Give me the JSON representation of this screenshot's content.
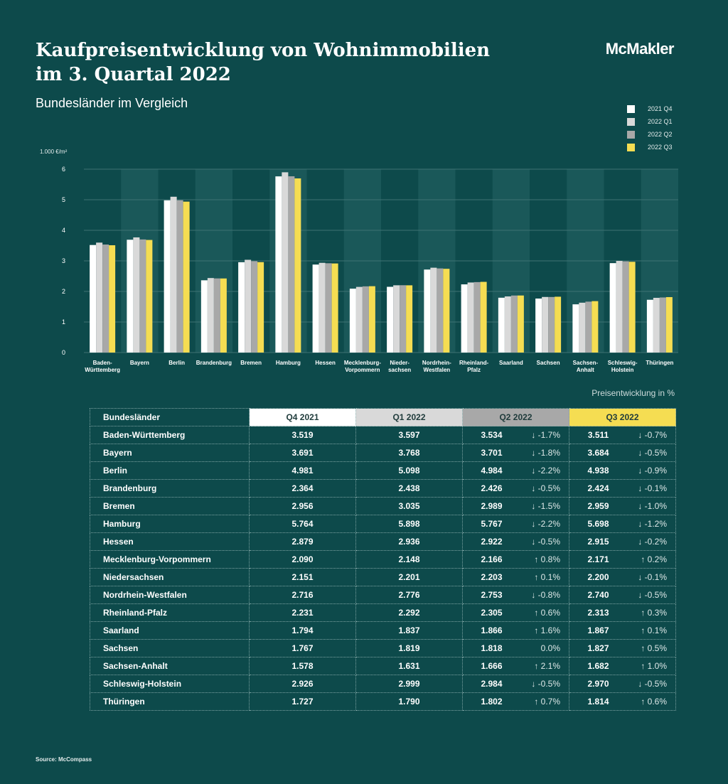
{
  "header": {
    "title_line1": "Kaufpreisentwicklung von Wohnimmobilien",
    "title_line2": "im 3. Quartal 2022",
    "subtitle": "Bundesländer im Vergleich",
    "brand": "McMakler"
  },
  "colors": {
    "background": "#0d4a4b",
    "q4_2021": "#ffffff",
    "q1_2022": "#d9d9d9",
    "q2_2022": "#a8a8a8",
    "q3_2022": "#f5dd52"
  },
  "chart_data": {
    "type": "bar",
    "ylabel": "1.000 €/m²",
    "ylim": [
      0,
      6
    ],
    "yticks": [
      0,
      1,
      2,
      3,
      4,
      5,
      6
    ],
    "grid": true,
    "legend_position": "top-right",
    "categories": [
      "Baden-Württemberg",
      "Bayern",
      "Berlin",
      "Brandenburg",
      "Bremen",
      "Hamburg",
      "Hessen",
      "Mecklenburg-Vorpommern",
      "Niedersachsen",
      "Nordrhein-Westfalen",
      "Rheinland-Pfalz",
      "Saarland",
      "Sachsen",
      "Sachsen-Anhalt",
      "Schleswig-Holstein",
      "Thüringen"
    ],
    "category_labels": [
      [
        "Baden-",
        "Württemberg"
      ],
      [
        "Bayern"
      ],
      [
        "Berlin"
      ],
      [
        "Brandenburg"
      ],
      [
        "Bremen"
      ],
      [
        "Hamburg"
      ],
      [
        "Hessen"
      ],
      [
        "Mecklenburg-",
        "Vorpommern"
      ],
      [
        "Nieder-",
        "sachsen"
      ],
      [
        "Nordrhein-",
        "Westfalen"
      ],
      [
        "Rheinland-",
        "Pfalz"
      ],
      [
        "Saarland"
      ],
      [
        "Sachsen"
      ],
      [
        "Sachsen-",
        "Anhalt"
      ],
      [
        "Schleswig-",
        "Holstein"
      ],
      [
        "Thüringen"
      ]
    ],
    "series": [
      {
        "name": "2021 Q4",
        "color": "#ffffff",
        "values": [
          3.519,
          3.691,
          4.981,
          2.364,
          2.956,
          5.764,
          2.879,
          2.09,
          2.151,
          2.716,
          2.231,
          1.794,
          1.767,
          1.578,
          2.926,
          1.727
        ]
      },
      {
        "name": "2022 Q1",
        "color": "#d9d9d9",
        "values": [
          3.597,
          3.768,
          5.098,
          2.438,
          3.035,
          5.898,
          2.936,
          2.148,
          2.201,
          2.776,
          2.292,
          1.837,
          1.819,
          1.631,
          2.999,
          1.79
        ]
      },
      {
        "name": "2022 Q2",
        "color": "#a8a8a8",
        "values": [
          3.534,
          3.701,
          4.984,
          2.426,
          2.989,
          5.767,
          2.922,
          2.166,
          2.203,
          2.753,
          2.305,
          1.866,
          1.818,
          1.666,
          2.984,
          1.802
        ]
      },
      {
        "name": "2022 Q3",
        "color": "#f5dd52",
        "values": [
          3.511,
          3.684,
          4.938,
          2.424,
          2.959,
          5.698,
          2.915,
          2.171,
          2.2,
          2.74,
          2.313,
          1.867,
          1.827,
          1.682,
          2.97,
          1.814
        ]
      }
    ]
  },
  "table": {
    "caption": "Preisentwicklung in %",
    "headers": [
      "Bundesländer",
      "Q4 2021",
      "Q1 2022",
      "Q2 2022",
      "Q3 2022"
    ],
    "rows": [
      {
        "name": "Baden-Württemberg",
        "q4": "3.519",
        "q1": "3.597",
        "q2": "3.534",
        "q2_change": "↓ -1.7%",
        "q3": "3.511",
        "q3_change": "↓ -0.7%"
      },
      {
        "name": "Bayern",
        "q4": "3.691",
        "q1": "3.768",
        "q2": "3.701",
        "q2_change": "↓ -1.8%",
        "q3": "3.684",
        "q3_change": "↓ -0.5%"
      },
      {
        "name": "Berlin",
        "q4": "4.981",
        "q1": "5.098",
        "q2": "4.984",
        "q2_change": "↓ -2.2%",
        "q3": "4.938",
        "q3_change": "↓ -0.9%"
      },
      {
        "name": "Brandenburg",
        "q4": "2.364",
        "q1": "2.438",
        "q2": "2.426",
        "q2_change": "↓ -0.5%",
        "q3": "2.424",
        "q3_change": "↓ -0.1%"
      },
      {
        "name": "Bremen",
        "q4": "2.956",
        "q1": "3.035",
        "q2": "2.989",
        "q2_change": "↓ -1.5%",
        "q3": "2.959",
        "q3_change": "↓ -1.0%"
      },
      {
        "name": "Hamburg",
        "q4": "5.764",
        "q1": "5.898",
        "q2": "5.767",
        "q2_change": "↓ -2.2%",
        "q3": "5.698",
        "q3_change": "↓ -1.2%"
      },
      {
        "name": "Hessen",
        "q4": "2.879",
        "q1": "2.936",
        "q2": "2.922",
        "q2_change": "↓ -0.5%",
        "q3": "2.915",
        "q3_change": "↓ -0.2%"
      },
      {
        "name": "Mecklenburg-Vorpommern",
        "q4": "2.090",
        "q1": "2.148",
        "q2": "2.166",
        "q2_change": "↑ 0.8%",
        "q3": "2.171",
        "q3_change": "↑ 0.2%"
      },
      {
        "name": "Niedersachsen",
        "q4": "2.151",
        "q1": "2.201",
        "q2": "2.203",
        "q2_change": "↑ 0.1%",
        "q3": "2.200",
        "q3_change": "↓ -0.1%"
      },
      {
        "name": "Nordrhein-Westfalen",
        "q4": "2.716",
        "q1": "2.776",
        "q2": "2.753",
        "q2_change": "↓ -0.8%",
        "q3": "2.740",
        "q3_change": "↓ -0.5%"
      },
      {
        "name": "Rheinland-Pfalz",
        "q4": "2.231",
        "q1": "2.292",
        "q2": "2.305",
        "q2_change": "↑ 0.6%",
        "q3": "2.313",
        "q3_change": "↑ 0.3%"
      },
      {
        "name": "Saarland",
        "q4": "1.794",
        "q1": "1.837",
        "q2": "1.866",
        "q2_change": "↑ 1.6%",
        "q3": "1.867",
        "q3_change": "↑ 0.1%"
      },
      {
        "name": "Sachsen",
        "q4": "1.767",
        "q1": "1.819",
        "q2": "1.818",
        "q2_change": "0.0%",
        "q3": "1.827",
        "q3_change": "↑ 0.5%"
      },
      {
        "name": "Sachsen-Anhalt",
        "q4": "1.578",
        "q1": "1.631",
        "q2": "1.666",
        "q2_change": "↑ 2.1%",
        "q3": "1.682",
        "q3_change": "↑ 1.0%"
      },
      {
        "name": "Schleswig-Holstein",
        "q4": "2.926",
        "q1": "2.999",
        "q2": "2.984",
        "q2_change": "↓ -0.5%",
        "q3": "2.970",
        "q3_change": "↓ -0.5%"
      },
      {
        "name": "Thüringen",
        "q4": "1.727",
        "q1": "1.790",
        "q2": "1.802",
        "q2_change": "↑ 0.7%",
        "q3": "1.814",
        "q3_change": "↑ 0.6%"
      }
    ]
  },
  "footer": {
    "source": "Source: McCompass"
  }
}
